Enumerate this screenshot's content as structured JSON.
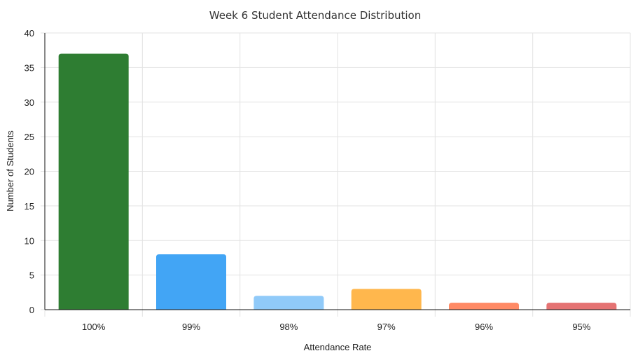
{
  "chart_data": {
    "type": "bar",
    "title": "Week 6 Student Attendance Distribution",
    "xlabel": "Attendance Rate",
    "ylabel": "Number of Students",
    "categories": [
      "100%",
      "99%",
      "98%",
      "97%",
      "96%",
      "95%"
    ],
    "values": [
      37,
      8,
      2,
      3,
      1,
      1
    ],
    "colors": [
      "#2e7d32",
      "#42a5f5",
      "#90caf9",
      "#ffb74d",
      "#ff8a65",
      "#e57373"
    ],
    "ylim": [
      0,
      40
    ],
    "yticks": [
      0,
      5,
      10,
      15,
      20,
      25,
      30,
      35,
      40
    ],
    "grid": true,
    "legend": "none"
  }
}
